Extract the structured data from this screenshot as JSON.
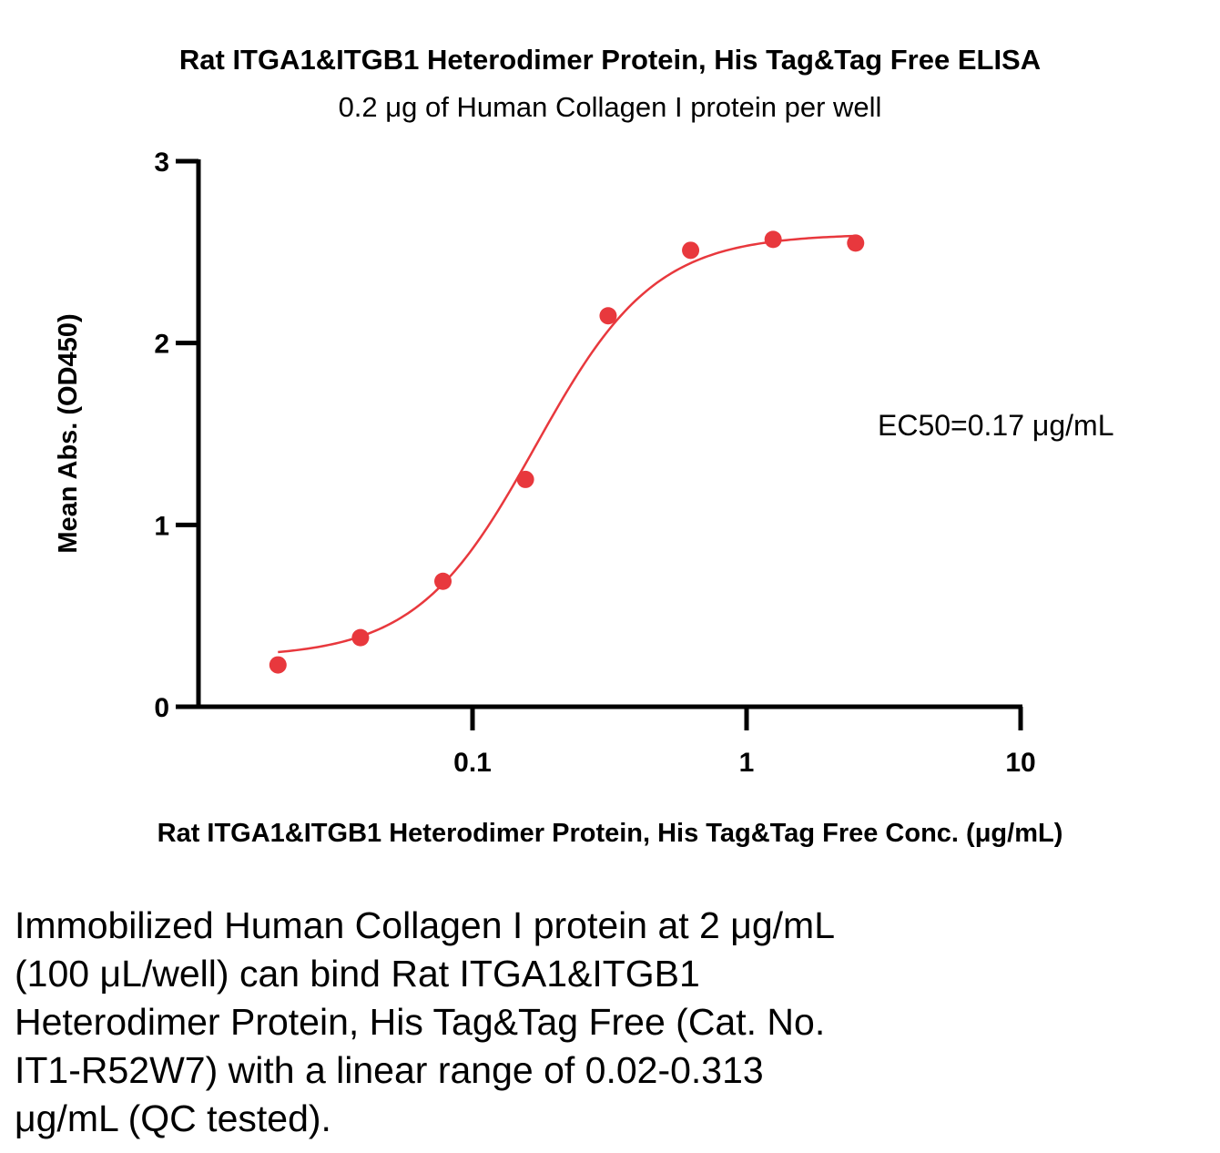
{
  "chart_data": {
    "type": "scatter",
    "title": "Rat ITGA1&ITGB1 Heterodimer Protein, His Tag&Tag Free ELISA",
    "subtitle": "0.2 μg of Human Collagen I protein per well",
    "xlabel": "Rat ITGA1&ITGB1 Heterodimer Protein, His Tag&Tag Free Conc. (μg/mL)",
    "ylabel": "Mean Abs. (OD450)",
    "xscale": "log",
    "xlim": [
      0.01,
      10
    ],
    "ylim": [
      0,
      3
    ],
    "x_ticks": [
      0.1,
      1,
      10
    ],
    "x_tick_labels": [
      "0.1",
      "1",
      "10"
    ],
    "y_ticks": [
      0,
      1,
      2,
      3
    ],
    "y_tick_labels": [
      "0",
      "1",
      "2",
      "3"
    ],
    "grid": false,
    "series": [
      {
        "color": "#e8383d",
        "x": [
          0.0195,
          0.039,
          0.078,
          0.156,
          0.3125,
          0.625,
          1.25,
          2.5
        ],
        "y": [
          0.23,
          0.38,
          0.69,
          1.25,
          2.15,
          2.51,
          2.57,
          2.55
        ],
        "fit": {
          "model": "4PL",
          "bottom": 0.27,
          "top": 2.6,
          "ec50": 0.17,
          "hill": 2.0
        }
      }
    ],
    "annotations": [
      {
        "text": "EC50=0.17 μg/mL"
      }
    ]
  },
  "caption": "Immobilized Human Collagen I protein at 2 μg/mL\n(100 μL/well) can bind Rat ITGA1&ITGB1\nHeterodimer Protein, His Tag&Tag Free (Cat. No.\nIT1-R52W7) with a linear range of 0.02-0.313\nμg/mL (QC tested)."
}
